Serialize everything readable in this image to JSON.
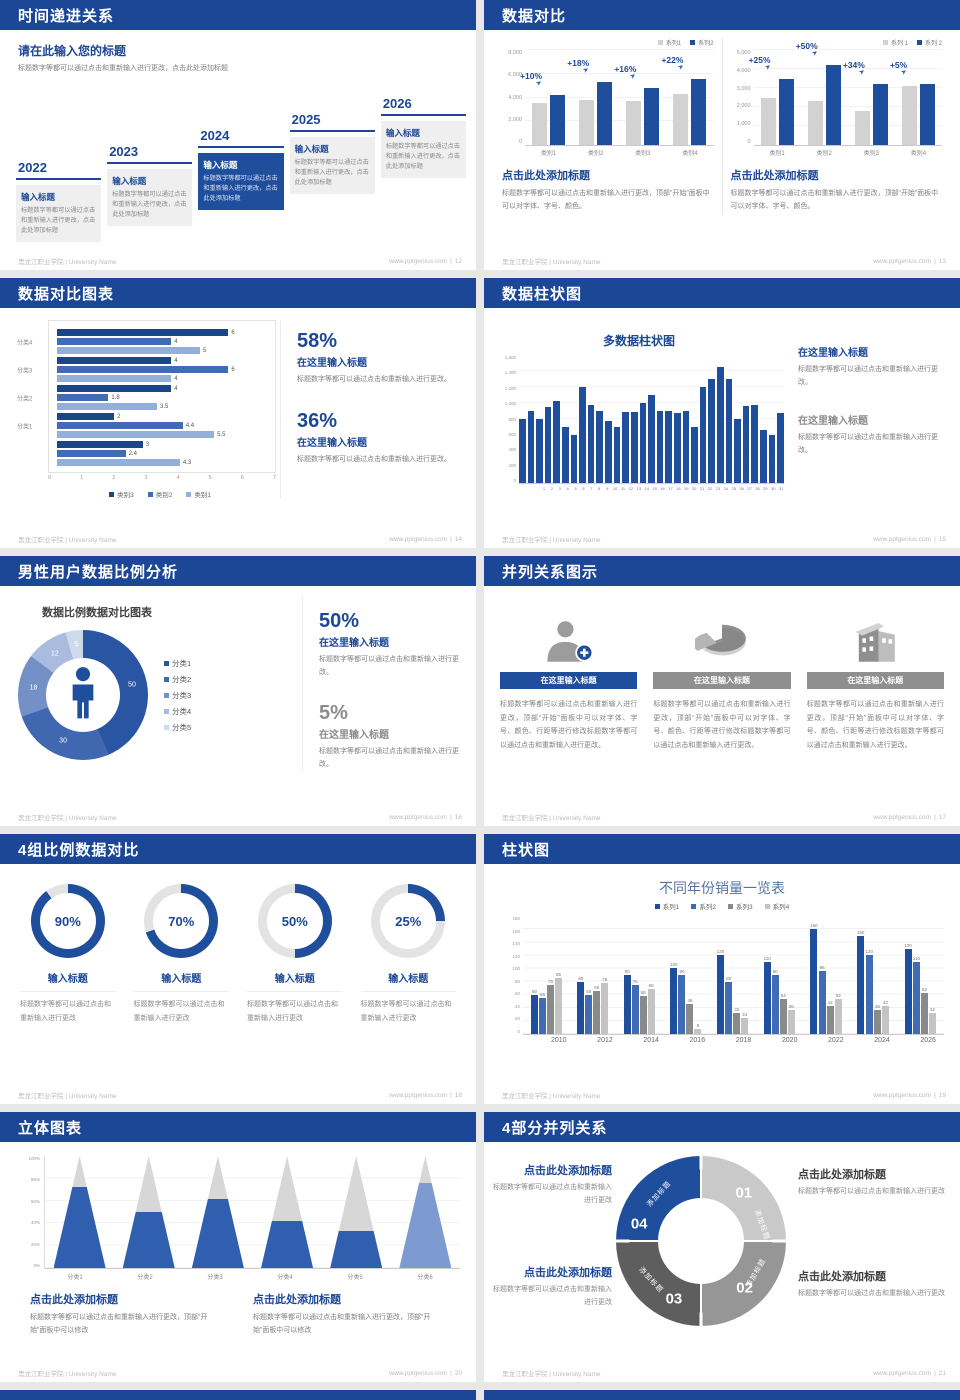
{
  "colors": {
    "header_blue": "#1b4796",
    "bar_dark": "#1f4e9c",
    "bar_mid": "#3f6cb5",
    "bar_light": "#94afd9",
    "gray_bar": "#d2d2d2",
    "gray_mid": "#969696",
    "gray_dark": "#5e5e5e",
    "text_gray": "#808080"
  },
  "footer": {
    "org": "黑龙江职业学院 | University Name",
    "site": "www.pptgenius.com",
    "page_sep": "|"
  },
  "slides": {
    "s12": {
      "title": "时间递进关系",
      "page": "12",
      "heading": "请在此输入您的标题",
      "intro": "标题数字等都可以通过点击和重新输入进行更改，点击此处添加标题",
      "years": [
        "2022",
        "2023",
        "2024",
        "2025",
        "2026"
      ],
      "item_title": "输入标题",
      "item_body": "标题数字等都可以通过点击和重新输入进行更改，点击此处添加标题"
    },
    "s13": {
      "title": "数据对比",
      "page": "13",
      "heading": "点击此处添加标题",
      "body": "标题数字等都可以通过点击和重新输入进行更改，顶部“开始”面板中可以对字体、字号、颜色。"
    },
    "s14": {
      "title": "数据对比图表",
      "page": "14",
      "blocks": [
        {
          "pct": "58%",
          "heading": "在这里输入标题",
          "body": "标题数字等都可以通过点击和重新输入进行更改。"
        },
        {
          "pct": "36%",
          "heading": "在这里输入标题",
          "body": "标题数字等都可以通过点击和重新输入进行更改。"
        }
      ]
    },
    "s15": {
      "title": "数据柱状图",
      "page": "15",
      "blocks": [
        {
          "heading": "在这里输入标题",
          "body": "标题数字等都可以通过点击和重新输入进行更改。"
        },
        {
          "heading": "在这里输入标题",
          "body": "标题数字等都可以通过点击和重新输入进行更改。"
        }
      ]
    },
    "s16": {
      "title": "男性用户数据比例分析",
      "page": "16",
      "blocks": [
        {
          "pct": "50%",
          "heading": "在这里输入标题",
          "body": "标题数字等都可以通过点击和重新输入进行更改。"
        },
        {
          "pct": "5%",
          "heading": "在这里输入标题",
          "body": "标题数字等都可以通过点击和重新输入进行更改。"
        }
      ]
    },
    "s17": {
      "title": "并列关系图示",
      "page": "17",
      "col_heading": "在这里输入标题",
      "col_body": "标题数字等都可以通过点击和重新输入进行更改，顶部“开始”面板中可以对字体、字号、颜色、行距等进行修改标题数字等都可以通过点击和重新输入进行更改。",
      "icons": [
        "user-plus-icon",
        "pie-3d-icon",
        "building-icon"
      ]
    },
    "s18": {
      "title": "4组比例数据对比",
      "page": "18",
      "percents": [
        "90%",
        "70%",
        "50%",
        "25%"
      ],
      "item_title": "输入标题",
      "item_body": "标题数字等都可以通过点击和重新输入进行更改"
    },
    "s19": {
      "title": "柱状图",
      "page": "19"
    },
    "s20": {
      "title": "立体图表",
      "page": "20",
      "block_heading": "点击此处添加标题",
      "block_body": "标题数字等都可以通过点击和重新输入进行更改，顶部“开始”面板中可以修改"
    },
    "s21": {
      "title": "4部分并列关系",
      "page": "21",
      "numbers": [
        "01",
        "02",
        "03",
        "04"
      ],
      "seg_label": "添加标题",
      "block_heading": "点击此处添加标题",
      "block_body": "标题数字等都可以通过点击和重新输入进行更改"
    }
  },
  "chart_data": [
    {
      "id": "slide13-left",
      "type": "bar",
      "categories": [
        "类别1",
        "类别2",
        "类别3",
        "类别4"
      ],
      "series": [
        {
          "name": "系列1",
          "values": [
            3500,
            3800,
            3700,
            4300
          ]
        },
        {
          "name": "系列2",
          "values": [
            4200,
            5300,
            4800,
            5600
          ]
        }
      ],
      "growth_labels": [
        "+10%",
        "+18%",
        "+16%",
        "+22%"
      ],
      "ylim": [
        0,
        8000
      ],
      "yticks": [
        0,
        2000,
        4000,
        6000,
        8000
      ],
      "legend_position": "top-right",
      "grid": true
    },
    {
      "id": "slide13-right",
      "type": "bar",
      "categories": [
        "类别1",
        "类别2",
        "类别3",
        "类别4"
      ],
      "series": [
        {
          "name": "系列 1",
          "values": [
            2500,
            2300,
            1800,
            3100
          ]
        },
        {
          "name": "系列 2",
          "values": [
            3500,
            4200,
            3200,
            3200
          ]
        }
      ],
      "growth_labels": [
        "+25%",
        "+50%",
        "+34%",
        "+5%"
      ],
      "ylim": [
        0,
        5000
      ],
      "yticks": [
        0,
        1000,
        2000,
        3000,
        4000,
        5000
      ],
      "legend_position": "top-right",
      "grid": true
    },
    {
      "id": "slide14",
      "type": "bar-horizontal",
      "categories": [
        "分类4",
        "分类3",
        "分类2",
        "分类1",
        ""
      ],
      "series": [
        {
          "name": "类别3",
          "values": [
            6,
            4,
            4,
            2,
            3
          ]
        },
        {
          "name": "类别2",
          "values": [
            4,
            6,
            1.8,
            4.4,
            2.4
          ]
        },
        {
          "name": "类别1",
          "values": [
            5,
            4,
            3.5,
            5.5,
            4.3
          ]
        }
      ],
      "xlim": [
        0,
        7
      ],
      "xticks": [
        0,
        1,
        2,
        3,
        4,
        5,
        6,
        7
      ],
      "legend_position": "bottom"
    },
    {
      "id": "slide15",
      "type": "bar",
      "title": "多数据柱状图",
      "x": [
        1,
        2,
        3,
        4,
        5,
        6,
        7,
        8,
        9,
        10,
        11,
        12,
        13,
        14,
        15,
        16,
        17,
        18,
        19,
        20,
        21,
        22,
        23,
        24,
        25,
        26,
        27,
        28,
        29,
        30,
        31
      ],
      "values": [
        800,
        900,
        800,
        950,
        1020,
        700,
        600,
        1200,
        980,
        900,
        780,
        700,
        890,
        890,
        1000,
        1100,
        900,
        900,
        880,
        900,
        700,
        1200,
        1300,
        1450,
        1300,
        800,
        960,
        970,
        660,
        600,
        870
      ],
      "ylim": [
        0,
        1600
      ],
      "yticks": [
        0,
        200,
        400,
        600,
        800,
        1000,
        1200,
        1400,
        1600
      ]
    },
    {
      "id": "slide16",
      "type": "pie",
      "title": "数据比例数据对比图表",
      "labels": [
        "分类1",
        "分类2",
        "分类3",
        "分类4",
        "分类5"
      ],
      "values": [
        50,
        30,
        18,
        12,
        5
      ],
      "center_icon": "male-person-icon",
      "legend_position": "right"
    },
    {
      "id": "slide18",
      "type": "pie",
      "labels": [
        "输入标题",
        "输入标题",
        "输入标题",
        "输入标题"
      ],
      "values": [
        90,
        70,
        50,
        25
      ],
      "unit": "%"
    },
    {
      "id": "slide19",
      "type": "bar",
      "title": "不同年份销量一览表",
      "categories": [
        "2010",
        "2012",
        "2014",
        "2016",
        "2018",
        "2020",
        "2022",
        "2024",
        "2026"
      ],
      "series": [
        {
          "name": "系列1",
          "values": [
            60,
            80,
            90,
            100,
            120,
            110,
            160,
            150,
            130
          ]
        },
        {
          "name": "系列2",
          "values": [
            55,
            60,
            75,
            90,
            80,
            90,
            96,
            120,
            110
          ]
        },
        {
          "name": "系列3",
          "values": [
            75,
            65,
            58,
            46,
            32,
            54,
            42,
            36,
            62
          ]
        },
        {
          "name": "系列4",
          "values": [
            85,
            78,
            68,
            8,
            24,
            36,
            53,
            42,
            32
          ]
        }
      ],
      "ylim": [
        0,
        180
      ],
      "yticks": [
        0,
        20,
        40,
        60,
        80,
        100,
        120,
        140,
        160,
        180
      ],
      "legend_position": "top",
      "grid": true
    },
    {
      "id": "slide20",
      "type": "bar",
      "shape": "cone",
      "categories": [
        "分类1",
        "分类2",
        "分类3",
        "分类4",
        "分类5",
        "分类6"
      ],
      "values": [
        72,
        50,
        62,
        42,
        33,
        76
      ],
      "unit": "%",
      "ylim": [
        0,
        100
      ],
      "yticks": [
        "0%",
        "20%",
        "40%",
        "60%",
        "80%",
        "100%"
      ]
    }
  ]
}
